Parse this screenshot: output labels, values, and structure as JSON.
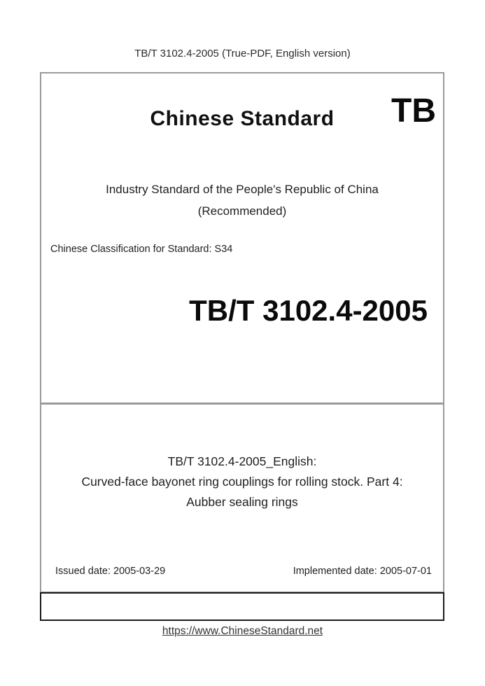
{
  "header": {
    "note": "TB/T 3102.4-2005 (True-PDF, English version)"
  },
  "cover": {
    "brand_title": "Chinese Standard",
    "brand_code": "TB",
    "org_line1": "Industry Standard of the People's Republic of China",
    "org_line2": "(Recommended)",
    "classification": "Chinese Classification for Standard: S34",
    "standard_number": "TB/T 3102.4-2005",
    "title_line1": "TB/T 3102.4-2005_English:",
    "title_line2": "Curved-face bayonet ring couplings for rolling stock. Part 4:",
    "title_line3": "Aubber sealing rings",
    "issued_date": "Issued date: 2005-03-29",
    "implemented_date": "Implemented date: 2005-07-01"
  },
  "footer": {
    "link": "https://www.ChineseStandard.net"
  },
  "colors": {
    "cover_border": "#9a9a9a",
    "footer_box_border": "#1b1b1b",
    "text": "#1f1f1f"
  }
}
